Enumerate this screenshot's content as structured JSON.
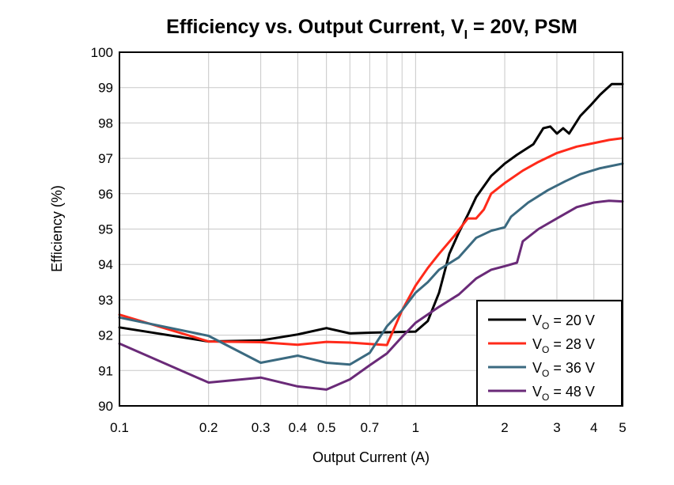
{
  "chart_data": {
    "type": "line",
    "title": {
      "prefix": "Efficiency vs. Output Current, V",
      "subscript": "I",
      "suffix": " = 20V, PSM"
    },
    "xlabel": "Output Current (A)",
    "ylabel": "Efficiency (%)",
    "x_scale": "log",
    "xlim": [
      0.1,
      5
    ],
    "ylim": [
      90,
      100
    ],
    "x_ticks": [
      0.1,
      0.2,
      0.3,
      0.4,
      0.5,
      0.7,
      1,
      2,
      3,
      4,
      5
    ],
    "x_tick_labels": [
      "0.1",
      "0.2",
      "0.3",
      "0.4",
      "0.5",
      "0.7",
      "1",
      "2",
      "3",
      "4",
      "5"
    ],
    "y_ticks": [
      90,
      91,
      92,
      93,
      94,
      95,
      96,
      97,
      98,
      99,
      100
    ],
    "y_tick_labels": [
      "90",
      "91",
      "92",
      "93",
      "94",
      "95",
      "96",
      "97",
      "98",
      "99",
      "100"
    ],
    "grid": true,
    "legend_position": "bottom-right",
    "series": [
      {
        "name": "V_O = 20 V",
        "legend": {
          "prefix": "V",
          "subscript": "O",
          "suffix": " = 20 V"
        },
        "color": "#000000",
        "points": [
          [
            0.1,
            92.22
          ],
          [
            0.2,
            91.82
          ],
          [
            0.3,
            91.85
          ],
          [
            0.4,
            92.02
          ],
          [
            0.5,
            92.2
          ],
          [
            0.6,
            92.05
          ],
          [
            0.7,
            92.07
          ],
          [
            0.8,
            92.08
          ],
          [
            1.0,
            92.1
          ],
          [
            1.1,
            92.4
          ],
          [
            1.2,
            93.2
          ],
          [
            1.3,
            94.3
          ],
          [
            1.4,
            94.9
          ],
          [
            1.5,
            95.4
          ],
          [
            1.6,
            95.9
          ],
          [
            1.8,
            96.5
          ],
          [
            2.0,
            96.85
          ],
          [
            2.2,
            97.1
          ],
          [
            2.5,
            97.4
          ],
          [
            2.7,
            97.85
          ],
          [
            2.85,
            97.9
          ],
          [
            3.0,
            97.7
          ],
          [
            3.15,
            97.85
          ],
          [
            3.3,
            97.7
          ],
          [
            3.6,
            98.2
          ],
          [
            3.9,
            98.5
          ],
          [
            4.2,
            98.8
          ],
          [
            4.6,
            99.1
          ],
          [
            5.0,
            99.1
          ]
        ]
      },
      {
        "name": "V_O = 28 V",
        "legend": {
          "prefix": "V",
          "subscript": "O",
          "suffix": " = 28 V"
        },
        "color": "#ff2a1a",
        "points": [
          [
            0.1,
            92.58
          ],
          [
            0.2,
            91.82
          ],
          [
            0.3,
            91.8
          ],
          [
            0.4,
            91.73
          ],
          [
            0.5,
            91.81
          ],
          [
            0.6,
            91.79
          ],
          [
            0.7,
            91.75
          ],
          [
            0.8,
            91.72
          ],
          [
            0.9,
            92.7
          ],
          [
            1.0,
            93.4
          ],
          [
            1.1,
            93.9
          ],
          [
            1.2,
            94.3
          ],
          [
            1.35,
            94.8
          ],
          [
            1.5,
            95.3
          ],
          [
            1.6,
            95.3
          ],
          [
            1.7,
            95.55
          ],
          [
            1.8,
            96.0
          ],
          [
            2.0,
            96.3
          ],
          [
            2.3,
            96.65
          ],
          [
            2.6,
            96.9
          ],
          [
            3.0,
            97.15
          ],
          [
            3.5,
            97.33
          ],
          [
            4.0,
            97.43
          ],
          [
            4.5,
            97.52
          ],
          [
            5.0,
            97.57
          ]
        ]
      },
      {
        "name": "V_O = 36 V",
        "legend": {
          "prefix": "V",
          "subscript": "O",
          "suffix": " = 36 V"
        },
        "color": "#3b6a80",
        "points": [
          [
            0.1,
            92.5
          ],
          [
            0.2,
            91.98
          ],
          [
            0.3,
            91.22
          ],
          [
            0.4,
            91.42
          ],
          [
            0.5,
            91.22
          ],
          [
            0.6,
            91.17
          ],
          [
            0.7,
            91.5
          ],
          [
            0.8,
            92.25
          ],
          [
            0.9,
            92.7
          ],
          [
            1.0,
            93.2
          ],
          [
            1.1,
            93.5
          ],
          [
            1.2,
            93.85
          ],
          [
            1.4,
            94.2
          ],
          [
            1.6,
            94.75
          ],
          [
            1.8,
            94.95
          ],
          [
            2.0,
            95.05
          ],
          [
            2.1,
            95.35
          ],
          [
            2.4,
            95.75
          ],
          [
            2.8,
            96.1
          ],
          [
            3.2,
            96.35
          ],
          [
            3.6,
            96.55
          ],
          [
            4.2,
            96.72
          ],
          [
            5.0,
            96.85
          ]
        ]
      },
      {
        "name": "V_O = 48 V",
        "legend": {
          "prefix": "V",
          "subscript": "O",
          "suffix": " = 48 V"
        },
        "color": "#6a2a78",
        "points": [
          [
            0.1,
            91.76
          ],
          [
            0.2,
            90.66
          ],
          [
            0.3,
            90.8
          ],
          [
            0.4,
            90.55
          ],
          [
            0.5,
            90.46
          ],
          [
            0.6,
            90.75
          ],
          [
            0.7,
            91.15
          ],
          [
            0.8,
            91.48
          ],
          [
            0.9,
            91.95
          ],
          [
            1.0,
            92.35
          ],
          [
            1.2,
            92.8
          ],
          [
            1.4,
            93.15
          ],
          [
            1.6,
            93.6
          ],
          [
            1.8,
            93.85
          ],
          [
            2.0,
            93.95
          ],
          [
            2.2,
            94.05
          ],
          [
            2.3,
            94.65
          ],
          [
            2.6,
            95.0
          ],
          [
            3.0,
            95.3
          ],
          [
            3.5,
            95.62
          ],
          [
            4.0,
            95.75
          ],
          [
            4.5,
            95.8
          ],
          [
            5.0,
            95.78
          ]
        ]
      }
    ]
  }
}
